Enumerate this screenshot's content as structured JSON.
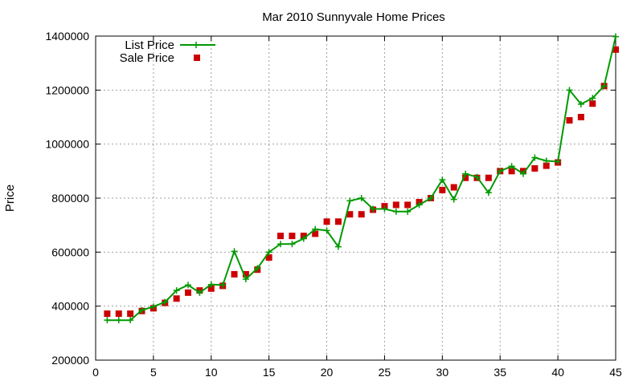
{
  "chart_data": {
    "type": "line",
    "title": "Mar 2010 Sunnyvale Home Prices",
    "xlabel": "",
    "ylabel": "Price",
    "xlim": [
      0,
      45
    ],
    "ylim": [
      200000,
      1400000
    ],
    "xticks": [
      0,
      5,
      10,
      15,
      20,
      25,
      30,
      35,
      40,
      45
    ],
    "yticks": [
      200000,
      400000,
      600000,
      800000,
      1000000,
      1200000,
      1400000
    ],
    "grid": true,
    "legend": "top-left",
    "series": [
      {
        "name": "List Price",
        "style": "line-with-plus-markers",
        "color": "#009900",
        "x": [
          1,
          2,
          3,
          4,
          5,
          6,
          7,
          8,
          9,
          10,
          11,
          12,
          13,
          14,
          15,
          16,
          17,
          18,
          19,
          20,
          21,
          22,
          23,
          24,
          25,
          26,
          27,
          28,
          29,
          30,
          31,
          32,
          33,
          34,
          35,
          36,
          37,
          38,
          39,
          40,
          41,
          42,
          43,
          44,
          45
        ],
        "values": [
          348000,
          348000,
          348000,
          385000,
          398000,
          415000,
          458000,
          478000,
          450000,
          480000,
          478000,
          603000,
          500000,
          540000,
          600000,
          630000,
          630000,
          650000,
          685000,
          680000,
          620000,
          790000,
          800000,
          760000,
          760000,
          750000,
          750000,
          775000,
          800000,
          868000,
          795000,
          890000,
          878000,
          820000,
          900000,
          918000,
          890000,
          950000,
          938000,
          935000,
          1200000,
          1148000,
          1170000,
          1215000,
          1398000
        ]
      },
      {
        "name": "Sale Price",
        "style": "square-markers",
        "color": "#cc0000",
        "x": [
          1,
          2,
          3,
          4,
          5,
          6,
          7,
          8,
          9,
          10,
          11,
          12,
          13,
          14,
          15,
          16,
          17,
          18,
          19,
          20,
          21,
          22,
          23,
          24,
          25,
          26,
          27,
          28,
          29,
          30,
          31,
          32,
          33,
          34,
          35,
          36,
          37,
          38,
          39,
          40,
          41,
          42,
          43,
          44,
          45
        ],
        "values": [
          372000,
          372000,
          372000,
          382000,
          392000,
          412000,
          428000,
          450000,
          458000,
          465000,
          475000,
          518000,
          518000,
          535000,
          580000,
          660000,
          660000,
          660000,
          668000,
          713000,
          713000,
          740000,
          740000,
          757000,
          770000,
          775000,
          775000,
          785000,
          800000,
          830000,
          840000,
          875000,
          875000,
          875000,
          900000,
          900000,
          900000,
          910000,
          920000,
          932000,
          1088000,
          1100000,
          1150000,
          1215000,
          1350000
        ]
      }
    ]
  }
}
